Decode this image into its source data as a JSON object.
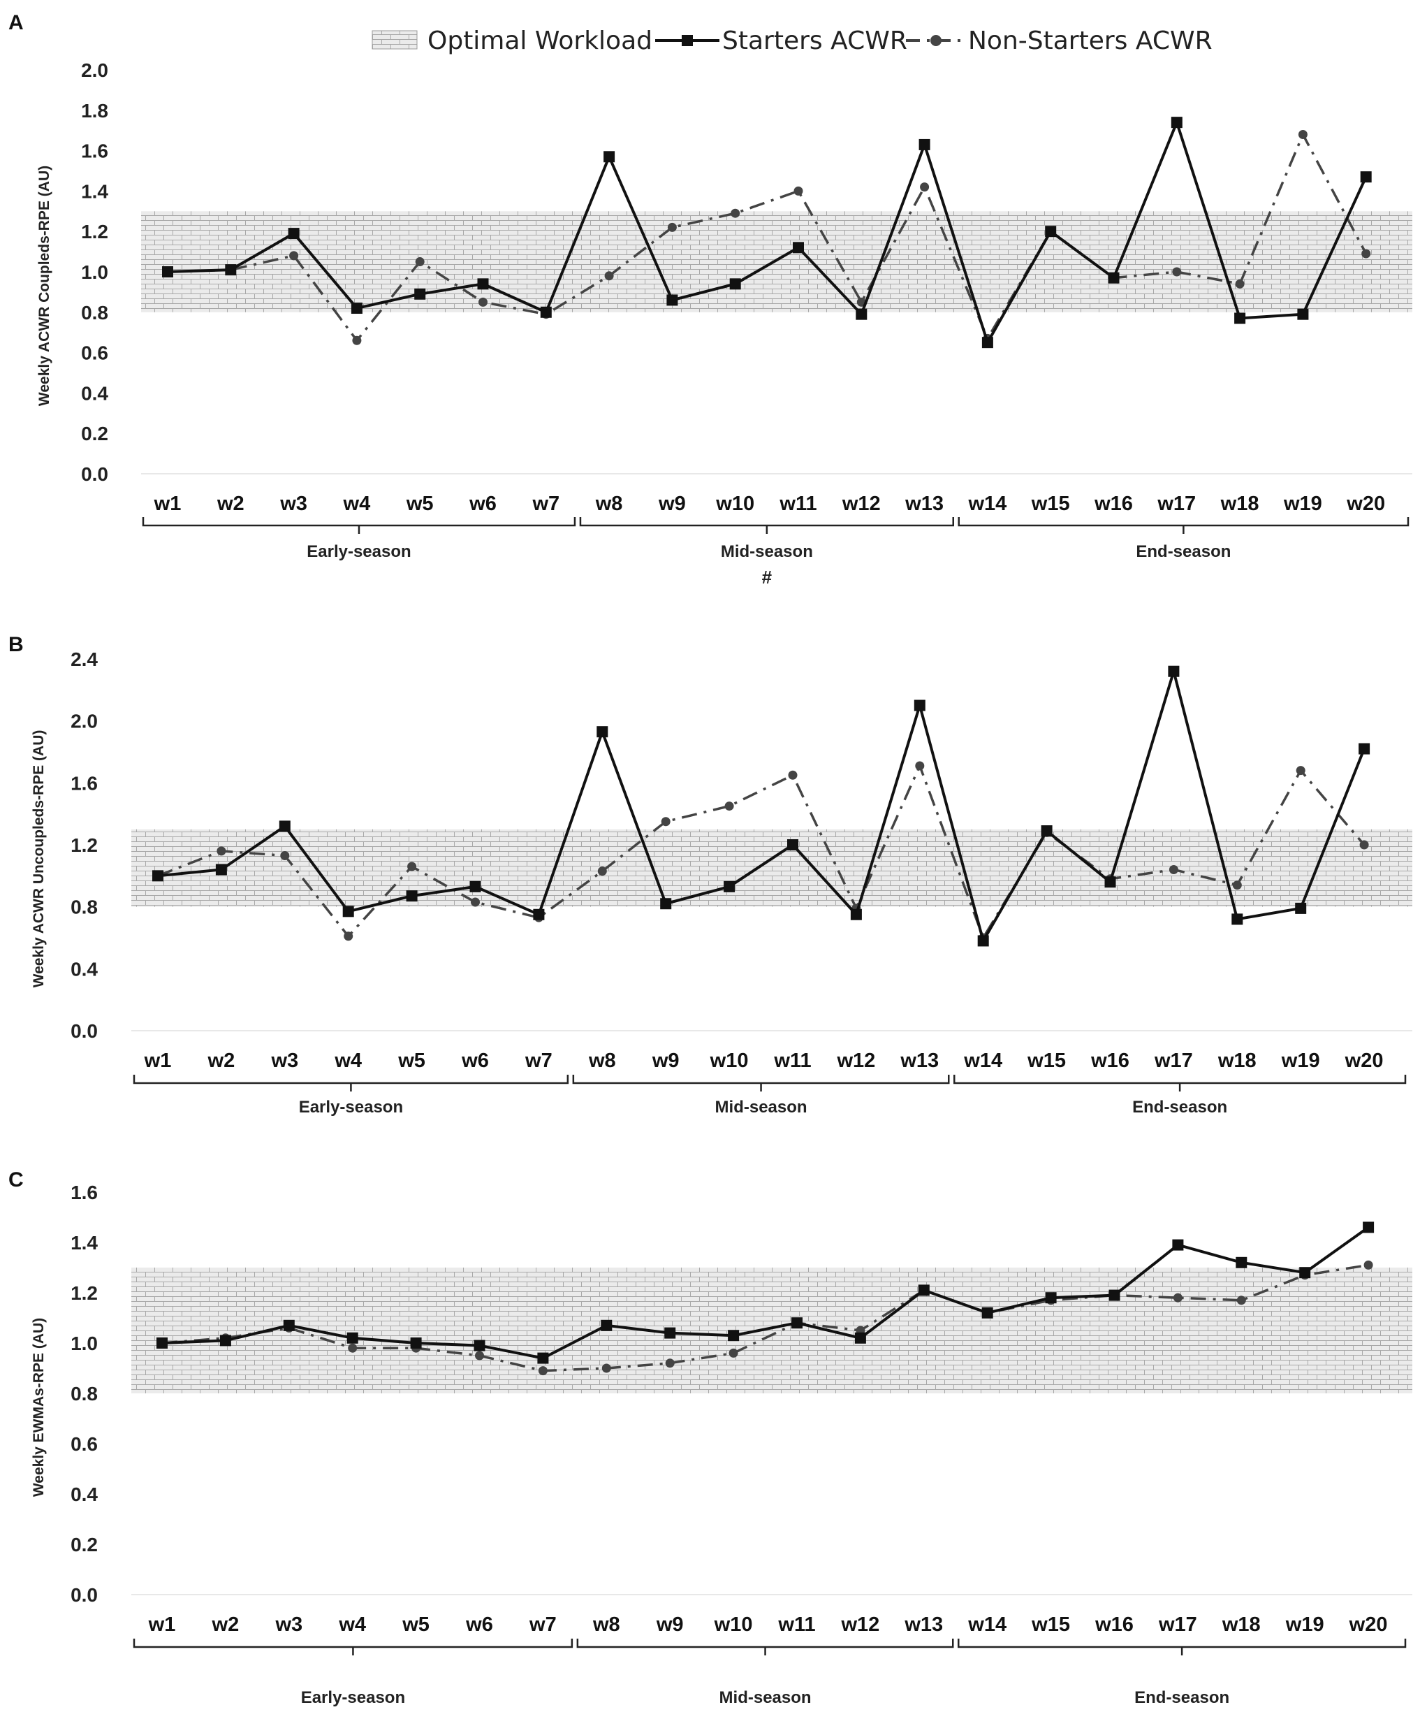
{
  "legend": {
    "optimal": "Optimal Workload",
    "starters": "Starters ACWR",
    "nonstarters": "Non-Starters ACWR"
  },
  "colors": {
    "starters": "#111111",
    "nonstarters": "#444444",
    "band_fill": "#ebebeb",
    "band_line": "#a8a8a8"
  },
  "season_labels": [
    "Early-season",
    "Mid-season",
    "End-season"
  ],
  "chart_data": [
    {
      "panel": "A",
      "type": "line",
      "ylabel": "Weekly ACWR Coupleds-RPE (AU)",
      "ylim": [
        0,
        2.0
      ],
      "yticks": [
        "0.0",
        "0.2",
        "0.4",
        "0.6",
        "0.8",
        "1.0",
        "1.2",
        "1.4",
        "1.6",
        "1.8",
        "2.0"
      ],
      "band": [
        0.8,
        1.3
      ],
      "categories": [
        "w1",
        "w2",
        "w3",
        "w4",
        "w5",
        "w6",
        "w7",
        "w8",
        "w9",
        "w10",
        "w11",
        "w12",
        "w13",
        "w14",
        "w15",
        "w16",
        "w17",
        "w18",
        "w19",
        "w20"
      ],
      "series": [
        {
          "name": "Starters ACWR",
          "values": [
            1.0,
            1.01,
            1.19,
            0.82,
            0.89,
            0.94,
            0.8,
            1.57,
            0.86,
            0.94,
            1.12,
            0.79,
            1.63,
            0.65,
            1.2,
            0.97,
            1.74,
            0.77,
            0.79,
            1.47
          ]
        },
        {
          "name": "Non-Starters ACWR",
          "values": [
            1.0,
            1.01,
            1.08,
            0.66,
            1.05,
            0.85,
            0.79,
            0.98,
            1.22,
            1.29,
            1.4,
            0.85,
            1.42,
            0.67,
            1.2,
            0.97,
            1.0,
            0.94,
            1.68,
            1.09
          ]
        }
      ],
      "season_groups": [
        {
          "label": "Early-season",
          "start": 1,
          "end": 7
        },
        {
          "label": "Mid-season",
          "start": 8,
          "end": 13,
          "note": "#"
        },
        {
          "label": "End-season",
          "start": 14,
          "end": 20
        }
      ]
    },
    {
      "panel": "B",
      "type": "line",
      "ylabel": "Weekly ACWR Uncoupleds-RPE (AU)",
      "ylim": [
        0,
        2.4
      ],
      "yticks": [
        "0.0",
        "0.4",
        "0.8",
        "1.2",
        "1.6",
        "2.0",
        "2.4"
      ],
      "band": [
        0.8,
        1.3
      ],
      "categories": [
        "w1",
        "w2",
        "w3",
        "w4",
        "w5",
        "w6",
        "w7",
        "w8",
        "w9",
        "w10",
        "w11",
        "w12",
        "w13",
        "w14",
        "w15",
        "w16",
        "w17",
        "w18",
        "w19",
        "w20"
      ],
      "series": [
        {
          "name": "Starters ACWR",
          "values": [
            1.0,
            1.04,
            1.32,
            0.77,
            0.87,
            0.93,
            0.75,
            1.93,
            0.82,
            0.93,
            1.2,
            0.75,
            2.1,
            0.58,
            1.29,
            0.96,
            2.32,
            0.72,
            0.79,
            1.82
          ]
        },
        {
          "name": "Non-Starters ACWR",
          "values": [
            1.0,
            1.16,
            1.13,
            0.61,
            1.06,
            0.83,
            0.73,
            1.03,
            1.35,
            1.45,
            1.65,
            0.79,
            1.71,
            0.6,
            1.28,
            0.98,
            1.04,
            0.94,
            1.68,
            1.2
          ]
        }
      ],
      "season_groups": [
        {
          "label": "Early-season",
          "start": 1,
          "end": 7
        },
        {
          "label": "Mid-season",
          "start": 8,
          "end": 13
        },
        {
          "label": "End-season",
          "start": 14,
          "end": 20
        }
      ]
    },
    {
      "panel": "C",
      "type": "line",
      "ylabel": "Weekly EWMAs-RPE (AU)",
      "ylim": [
        0,
        1.6
      ],
      "yticks": [
        "0.0",
        "0.2",
        "0.4",
        "0.6",
        "0.8",
        "1.0",
        "1.2",
        "1.4",
        "1.6"
      ],
      "band": [
        0.8,
        1.3
      ],
      "categories": [
        "w1",
        "w2",
        "w3",
        "w4",
        "w5",
        "w6",
        "w7",
        "w8",
        "w9",
        "w10",
        "w11",
        "w12",
        "w13",
        "w14",
        "w15",
        "w16",
        "w17",
        "w18",
        "w19",
        "w20"
      ],
      "series": [
        {
          "name": "Starters ACWR",
          "values": [
            1.0,
            1.01,
            1.07,
            1.02,
            1.0,
            0.99,
            0.94,
            1.07,
            1.04,
            1.03,
            1.08,
            1.02,
            1.21,
            1.12,
            1.18,
            1.19,
            1.39,
            1.32,
            1.28,
            1.46
          ]
        },
        {
          "name": "Non-Starters ACWR",
          "values": [
            1.0,
            1.02,
            1.06,
            0.98,
            0.98,
            0.95,
            0.89,
            0.9,
            0.92,
            0.96,
            1.08,
            1.05,
            1.21,
            1.12,
            1.17,
            1.19,
            1.18,
            1.17,
            1.27,
            1.31
          ]
        }
      ],
      "season_groups": [
        {
          "label": "Early-season",
          "start": 1,
          "end": 7
        },
        {
          "label": "Mid-season",
          "start": 8,
          "end": 13
        },
        {
          "label": "End-season",
          "start": 14,
          "end": 20
        }
      ]
    }
  ]
}
